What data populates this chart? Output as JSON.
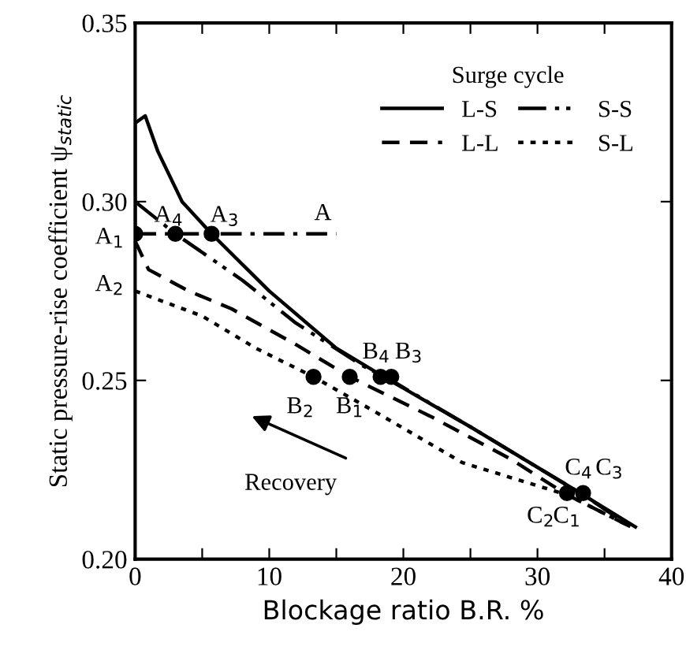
{
  "chart_data": {
    "type": "line",
    "xlabel": "Blockage ratio B.R. %",
    "ylabel": "Static pressure-rise coefficient ψ$_{static}$",
    "legend_title": "Surge cycle",
    "legend": "top right",
    "grid": false,
    "xlim": [
      0,
      40
    ],
    "ylim": [
      0.2,
      0.35
    ],
    "xticks": [
      0,
      {
        "value": 5,
        "label": null
      },
      10,
      {
        "value": 15,
        "label": null
      },
      20,
      {
        "value": 25,
        "label": null
      },
      30,
      {
        "value": 35,
        "label": null
      },
      40
    ],
    "yticks": [
      {
        "value": 0.2,
        "label": "0.20"
      },
      0.25,
      {
        "value": 0.3,
        "label": "0.30"
      },
      0.35
    ],
    "series": [
      {
        "name": "L-S",
        "color": "#000000",
        "line_style": "solid",
        "x": [
          0,
          0,
          0.75,
          1.7,
          3.5,
          5.7,
          10,
          15,
          19,
          25,
          33.4,
          37.3
        ],
        "values": [
          0.291,
          0.322,
          0.324,
          0.314,
          0.3,
          0.291,
          0.275,
          0.259,
          0.25,
          0.237,
          0.218,
          0.209
        ]
      },
      {
        "name": "L-L",
        "color": "#000000",
        "line_style": "dashed",
        "x": [
          0,
          1,
          4,
          7.2,
          12,
          16,
          22,
          28,
          32.2,
          37
        ],
        "values": [
          0.289,
          0.281,
          0.275,
          0.27,
          0.26,
          0.251,
          0.24,
          0.228,
          0.218,
          0.209
        ]
      },
      {
        "name": "S-S",
        "color": "#000000",
        "line_style": "dashdotdot",
        "x": [
          0,
          3,
          8,
          12,
          17,
          19.1,
          25,
          33.4,
          37
        ],
        "values": [
          0.3,
          0.291,
          0.278,
          0.266,
          0.254,
          0.25,
          0.237,
          0.218,
          0.209
        ]
      },
      {
        "name": "S-L",
        "color": "#000000",
        "line_style": "dotted",
        "x": [
          0,
          5,
          9,
          13.3,
          18,
          24.4,
          32.2,
          37
        ],
        "values": [
          0.275,
          0.268,
          0.259,
          0.251,
          0.241,
          0.227,
          0.218,
          0.209
        ]
      },
      {
        "color": "#000000",
        "line_style": "dashdot",
        "x": [
          0,
          15
        ],
        "values": [
          0.291,
          0.291
        ]
      },
      {
        "type": "scatter",
        "marker": "circle",
        "color": "#000000",
        "x": [
          0,
          3,
          5.7,
          13.3,
          16,
          18.3,
          19.1,
          32.2,
          33.4
        ],
        "values": [
          0.291,
          0.291,
          0.291,
          0.251,
          0.251,
          0.251,
          0.251,
          0.2185,
          0.2185
        ]
      }
    ],
    "annotations": [
      {
        "text": "A$_{1}$",
        "x": 0,
        "y": 0.291
      },
      {
        "text": "A$_{2}$",
        "x": 0,
        "y": 0.287
      },
      {
        "text": "A$_{4}$",
        "x": 3,
        "y": 0.291
      },
      {
        "text": "A$_{3}$",
        "x": 5.7,
        "y": 0.291
      },
      {
        "text": "A",
        "x": 14,
        "y": 0.291
      },
      {
        "text": "B$_{4}$",
        "x": 18.3,
        "y": 0.251
      },
      {
        "text": "B$_{3}$",
        "x": 19.1,
        "y": 0.251
      },
      {
        "text": "B$_{2}$",
        "x": 13.3,
        "y": 0.251
      },
      {
        "text": "B$_{1}$",
        "x": 16,
        "y": 0.251
      },
      {
        "text": "C$_{4}$",
        "x": 33.4,
        "y": 0.2185
      },
      {
        "text": "C$_{3}$",
        "x": 33.4,
        "y": 0.2185
      },
      {
        "text": "C$_{2}$",
        "x": 32.2,
        "y": 0.2185
      },
      {
        "text": "C$_{1}$",
        "x": 32.2,
        "y": 0.2185
      },
      "Recovery"
    ]
  }
}
